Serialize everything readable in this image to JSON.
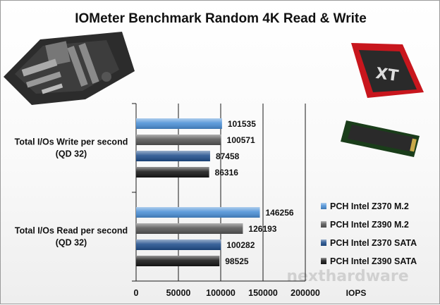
{
  "chart_data": {
    "type": "bar",
    "orientation": "horizontal",
    "title": "IOMeter Benchmark Random 4K Read & Write",
    "categories": [
      [
        "Total I/Os Write per second",
        "(QD 32)"
      ],
      [
        "Total I/Os Read per second",
        "(QD 32)"
      ]
    ],
    "series": [
      {
        "name": "PCH Intel Z370 M.2",
        "color": "#4a8fd6",
        "values": [
          101535,
          146256
        ]
      },
      {
        "name": "PCH Intel Z390 M.2",
        "color": "#555555",
        "values": [
          100571,
          126193
        ]
      },
      {
        "name": "PCH Intel Z370 SATA",
        "color": "#1f4e8c",
        "values": [
          87458,
          100282
        ]
      },
      {
        "name": "PCH Intel Z390 SATA",
        "color": "#151515",
        "values": [
          86316,
          98525
        ]
      }
    ],
    "xlim": [
      0,
      200000
    ],
    "xticks": [
      0,
      50000,
      100000,
      150000,
      200000
    ],
    "xlabel": "IOPS",
    "grid": true,
    "legend_position": "right",
    "watermark": "nexthardware.com"
  }
}
